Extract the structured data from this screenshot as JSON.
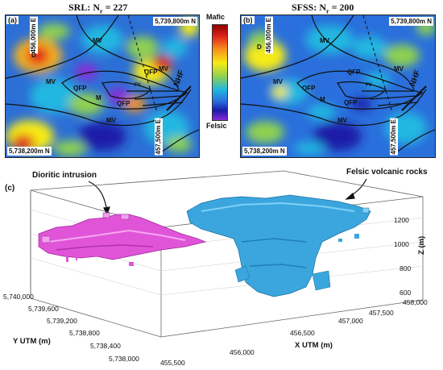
{
  "panel_a": {
    "label": "(a)",
    "title": "SRL: N",
    "title_sub": "r",
    "title_rest": " = 227",
    "corner_ne": "5,739,800m N",
    "corner_sw": "5,738,200m N",
    "vert_w": "456,000m E",
    "vert_e": "457,500m E",
    "units": [
      "D",
      "MV",
      "MV",
      "QFP",
      "QFP",
      "M",
      "QFP",
      "MV",
      "MV",
      "FV"
    ],
    "fault_label": "NHF"
  },
  "panel_b": {
    "label": "(b)",
    "title": "SFSS: N",
    "title_sub": "r",
    "title_rest": " = 200",
    "corner_ne": "5,739,800m N",
    "corner_sw": "5,738,200m N",
    "vert_w": "456,000m E",
    "vert_e": "457,500m E",
    "units": [
      "D",
      "MV",
      "MV",
      "QFP",
      "QFP",
      "M",
      "QFP",
      "MV",
      "MV",
      "FV"
    ],
    "fault_label": "NHF"
  },
  "colorbar": {
    "top_label": "Mafic",
    "bottom_label": "Felsic",
    "colors": [
      "#8b0000",
      "#e0231b",
      "#f7941d",
      "#f6eb14",
      "#8fd14f",
      "#21b7e0",
      "#2a6fdc",
      "#1a1aa8",
      "#8b2bd6"
    ]
  },
  "panel_c": {
    "label": "(c)",
    "annotation_left": "Dioritic intrusion",
    "annotation_right": "Felsic volcanic rocks",
    "body_colors": {
      "diorite": "#e055d8",
      "felsic": "#3aa6dd"
    },
    "y_axis_label": "Y UTM (m)",
    "y_ticks": [
      "5,740,000",
      "5,739,600",
      "5,739,200",
      "5,738,800",
      "5,738,400",
      "5,738,000"
    ],
    "x_axis_label": "X UTM (m)",
    "x_ticks": [
      "455,500",
      "456,000",
      "456,500",
      "457,000",
      "457,500",
      "458,000"
    ],
    "z_axis_label": "Z (m)",
    "z_ticks": [
      "1200",
      "1000",
      "800",
      "600"
    ]
  }
}
